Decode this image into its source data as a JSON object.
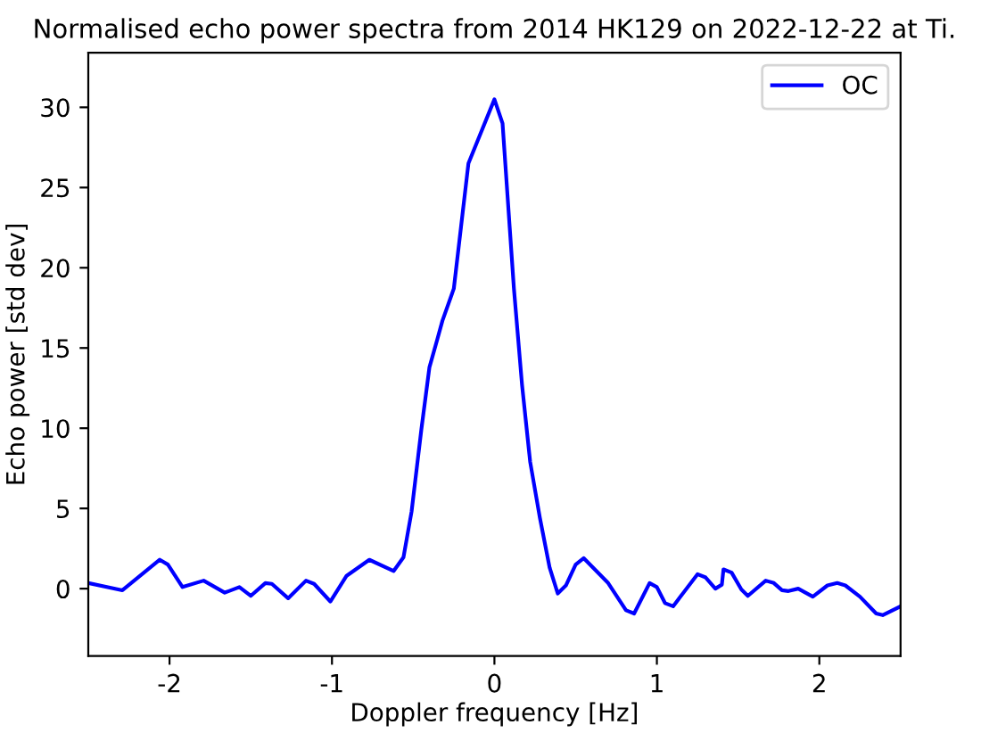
{
  "chart_data": {
    "type": "line",
    "title": "Normalised echo power spectra from 2014 HK129 on 2022-12-22 at Ti.",
    "xlabel": "Doppler frequency [Hz]",
    "ylabel": "Echo power [std dev]",
    "xlim": [
      -2.5,
      2.5
    ],
    "xticks": [
      -2,
      -1,
      0,
      1,
      2
    ],
    "ylim": [
      -4.2,
      33.4
    ],
    "yticks": [
      0,
      5,
      10,
      15,
      20,
      25,
      30
    ],
    "legend": "top right",
    "grid": false,
    "series": [
      {
        "name": "OC",
        "color": "#0000ff",
        "x": [
          -2.5,
          -2.29,
          -2.06,
          -2.01,
          -1.92,
          -1.79,
          -1.66,
          -1.57,
          -1.5,
          -1.41,
          -1.37,
          -1.27,
          -1.16,
          -1.11,
          -1.01,
          -0.91,
          -0.77,
          -0.62,
          -0.56,
          -0.51,
          -0.45,
          -0.4,
          -0.35,
          -0.32,
          -0.25,
          -0.16,
          0.0,
          0.05,
          0.12,
          0.17,
          0.22,
          0.28,
          0.34,
          0.39,
          0.44,
          0.5,
          0.55,
          0.7,
          0.81,
          0.86,
          0.955,
          1.0,
          1.05,
          1.1,
          1.25,
          1.3,
          1.36,
          1.4,
          1.41,
          1.46,
          1.52,
          1.56,
          1.67,
          1.72,
          1.77,
          1.81,
          1.87,
          1.96,
          2.05,
          2.11,
          2.16,
          2.25,
          2.35,
          2.39,
          2.5
        ],
        "values": [
          0.35,
          -0.1,
          1.8,
          1.5,
          0.1,
          0.5,
          -0.25,
          0.1,
          -0.45,
          0.35,
          0.3,
          -0.6,
          0.5,
          0.3,
          -0.8,
          0.8,
          1.8,
          1.1,
          1.95,
          4.8,
          9.9,
          13.8,
          15.6,
          16.7,
          18.7,
          26.5,
          30.5,
          29.0,
          18.7,
          12.7,
          7.9,
          4.4,
          1.3,
          -0.3,
          0.2,
          1.5,
          1.9,
          0.35,
          -1.35,
          -1.55,
          0.35,
          0.1,
          -0.9,
          -1.1,
          0.9,
          0.7,
          0.0,
          0.25,
          1.2,
          1.0,
          -0.05,
          -0.45,
          0.5,
          0.35,
          -0.1,
          -0.15,
          0.0,
          -0.5,
          0.2,
          0.35,
          0.2,
          -0.5,
          -1.55,
          -1.65,
          -1.1
        ]
      }
    ]
  }
}
